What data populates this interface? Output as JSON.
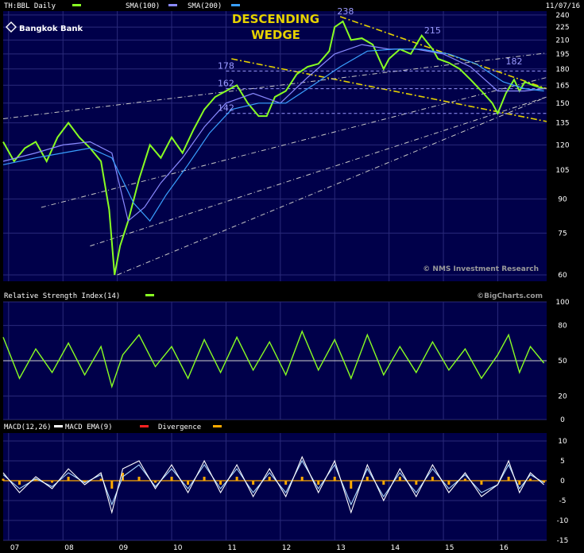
{
  "header": {
    "symbol": "TH:BBL Daily",
    "sma100": "SMA(100)",
    "sma200": "SMA(200)",
    "date": "11/07/16",
    "logo_text": "Bangkok Bank",
    "pattern_line1": "DESCENDING",
    "pattern_line2": "WEDGE",
    "copyright": "© NMS Investment Research",
    "bigcharts": "©BigCharts.com"
  },
  "colors": {
    "background": "#000000",
    "plot_bg": "#00004a",
    "grid": "#2a2a7a",
    "price": "#88ff22",
    "sma100": "#8a8aff",
    "sma200": "#3aa0ff",
    "trendline_yellow": "#e6d200",
    "trendline_white": "#c8c8c8",
    "macd": "#ffffff",
    "macd_ema": "#a8d8ff",
    "divergence": "#ffaa00",
    "divergence_neg": "#ff2222"
  },
  "chart_data": [
    {
      "type": "line",
      "title": "TH:BBL Daily",
      "series": [
        {
          "name": "TH:BBL Daily",
          "role": "price",
          "x": [
            2006.9,
            2007.1,
            2007.3,
            2007.5,
            2007.7,
            2007.9,
            2008.1,
            2008.3,
            2008.5,
            2008.7,
            2008.85,
            2008.95,
            2009.05,
            2009.2,
            2009.4,
            2009.6,
            2009.8,
            2010.0,
            2010.2,
            2010.4,
            2010.6,
            2010.8,
            2011.0,
            2011.2,
            2011.4,
            2011.6,
            2011.75,
            2011.9,
            2012.1,
            2012.3,
            2012.5,
            2012.7,
            2012.9,
            2013.0,
            2013.15,
            2013.3,
            2013.5,
            2013.7,
            2013.9,
            2014.0,
            2014.2,
            2014.4,
            2014.6,
            2014.8,
            2014.9,
            2015.1,
            2015.3,
            2015.5,
            2015.7,
            2015.9,
            2016.0,
            2016.15,
            2016.3,
            2016.4,
            2016.5,
            2016.65,
            2016.85
          ],
          "y": [
            122,
            110,
            118,
            122,
            110,
            125,
            135,
            125,
            118,
            110,
            85,
            60,
            70,
            80,
            100,
            120,
            112,
            125,
            115,
            130,
            145,
            155,
            160,
            165,
            150,
            140,
            140,
            155,
            160,
            175,
            182,
            185,
            198,
            225,
            232,
            210,
            212,
            205,
            180,
            190,
            200,
            195,
            215,
            200,
            190,
            186,
            180,
            170,
            160,
            150,
            142,
            158,
            170,
            160,
            168,
            165,
            162
          ]
        },
        {
          "name": "SMA(100)",
          "role": "sma",
          "x": [
            2006.9,
            2007.5,
            2008.0,
            2008.5,
            2008.9,
            2009.2,
            2009.5,
            2009.8,
            2010.2,
            2010.6,
            2011.0,
            2011.5,
            2012.0,
            2012.5,
            2013.0,
            2013.5,
            2014.0,
            2014.5,
            2015.0,
            2015.5,
            2016.0,
            2016.5,
            2016.85
          ],
          "y": [
            110,
            115,
            120,
            122,
            115,
            80,
            86,
            98,
            112,
            132,
            150,
            158,
            150,
            172,
            195,
            205,
            200,
            200,
            195,
            182,
            160,
            160,
            162
          ]
        },
        {
          "name": "SMA(200)",
          "role": "sma",
          "x": [
            2006.9,
            2007.5,
            2008.0,
            2008.5,
            2008.9,
            2009.3,
            2009.6,
            2009.9,
            2010.3,
            2010.7,
            2011.1,
            2011.6,
            2012.1,
            2012.6,
            2013.1,
            2013.6,
            2014.1,
            2014.6,
            2015.1,
            2015.6,
            2016.1,
            2016.5,
            2016.85
          ],
          "y": [
            108,
            112,
            115,
            118,
            112,
            88,
            80,
            92,
            108,
            128,
            145,
            150,
            150,
            165,
            182,
            198,
            200,
            200,
            195,
            185,
            168,
            162,
            160
          ]
        }
      ],
      "annotations": [
        {
          "text": "238",
          "x": 2013.2,
          "y": 238
        },
        {
          "text": "215",
          "x": 2014.8,
          "y": 215
        },
        {
          "text": "182",
          "x": 2016.3,
          "y": 182
        },
        {
          "text": "178",
          "x": 2011.0,
          "y": 178
        },
        {
          "text": "162",
          "x": 2011.0,
          "y": 162
        },
        {
          "text": "142",
          "x": 2011.0,
          "y": 142
        }
      ],
      "hlines": [
        178,
        162,
        142
      ],
      "trendlines": [
        {
          "style": "yellow-dash",
          "x": [
            2013.1,
            2016.9
          ],
          "y": [
            238,
            162
          ]
        },
        {
          "style": "yellow-dash",
          "x": [
            2011.1,
            2016.9
          ],
          "y": [
            190,
            136
          ]
        },
        {
          "style": "white-dashdot",
          "x": [
            2006.9,
            2016.9
          ],
          "y": [
            138,
            196
          ]
        },
        {
          "style": "white-dashdot",
          "x": [
            2007.6,
            2016.9
          ],
          "y": [
            86,
            172
          ]
        },
        {
          "style": "white-dashdot",
          "x": [
            2009.0,
            2016.9
          ],
          "y": [
            60,
            155
          ]
        },
        {
          "style": "white-dashdot",
          "x": [
            2008.5,
            2016.9
          ],
          "y": [
            70,
            155
          ]
        }
      ],
      "yaxis_ticks": [
        240,
        225,
        210,
        195,
        180,
        165,
        150,
        135,
        120,
        105,
        90,
        75,
        60
      ],
      "yscale": "log",
      "ylim": [
        58,
        245
      ],
      "xlim": [
        2006.9,
        2016.9
      ],
      "grid": true
    },
    {
      "type": "line",
      "title": "Relative Strength Index(14)",
      "series": [
        {
          "name": "Relative Strength Index(14)",
          "x": [
            2006.9,
            2007.2,
            2007.5,
            2007.8,
            2008.1,
            2008.4,
            2008.7,
            2008.9,
            2009.1,
            2009.4,
            2009.7,
            2010.0,
            2010.3,
            2010.6,
            2010.9,
            2011.2,
            2011.5,
            2011.8,
            2012.1,
            2012.4,
            2012.7,
            2013.0,
            2013.3,
            2013.6,
            2013.9,
            2014.2,
            2014.5,
            2014.8,
            2015.1,
            2015.4,
            2015.7,
            2016.0,
            2016.2,
            2016.4,
            2016.6,
            2016.85
          ],
          "y": [
            70,
            35,
            60,
            40,
            65,
            38,
            62,
            28,
            55,
            72,
            45,
            62,
            35,
            68,
            40,
            70,
            42,
            66,
            38,
            75,
            42,
            68,
            35,
            72,
            38,
            62,
            40,
            66,
            42,
            60,
            35,
            55,
            72,
            40,
            62,
            48
          ]
        }
      ],
      "yaxis_ticks": [
        100,
        80,
        50,
        20,
        0
      ],
      "hlines": [
        50
      ],
      "ylim": [
        0,
        100
      ]
    },
    {
      "type": "line",
      "title": "MACD(12,26)",
      "legend": [
        "MACD(12,26)",
        "MACD EMA(9)",
        "Divergence"
      ],
      "series": [
        {
          "name": "MACD(12,26)",
          "x": [
            2006.9,
            2007.2,
            2007.5,
            2007.8,
            2008.1,
            2008.4,
            2008.7,
            2008.9,
            2009.1,
            2009.4,
            2009.7,
            2010.0,
            2010.3,
            2010.6,
            2010.9,
            2011.2,
            2011.5,
            2011.8,
            2012.1,
            2012.4,
            2012.7,
            2013.0,
            2013.3,
            2013.6,
            2013.9,
            2014.2,
            2014.5,
            2014.8,
            2015.1,
            2015.4,
            2015.7,
            2016.0,
            2016.2,
            2016.4,
            2016.6,
            2016.85
          ],
          "y": [
            2,
            -3,
            1,
            -2,
            3,
            -1,
            2,
            -8,
            3,
            5,
            -2,
            4,
            -3,
            5,
            -3,
            4,
            -4,
            3,
            -4,
            6,
            -3,
            5,
            -8,
            4,
            -5,
            3,
            -4,
            4,
            -3,
            2,
            -4,
            -1,
            5,
            -3,
            2,
            -1
          ]
        },
        {
          "name": "MACD EMA(9)",
          "x": [
            2006.9,
            2007.2,
            2007.5,
            2007.8,
            2008.1,
            2008.4,
            2008.7,
            2008.9,
            2009.1,
            2009.4,
            2009.7,
            2010.0,
            2010.3,
            2010.6,
            2010.9,
            2011.2,
            2011.5,
            2011.8,
            2012.1,
            2012.4,
            2012.7,
            2013.0,
            2013.3,
            2013.6,
            2013.9,
            2014.2,
            2014.5,
            2014.8,
            2015.1,
            2015.4,
            2015.7,
            2016.0,
            2016.2,
            2016.4,
            2016.6,
            2016.85
          ],
          "y": [
            1.5,
            -2,
            0.5,
            -1.5,
            2,
            -0.5,
            1.5,
            -6,
            1,
            4,
            -1.5,
            3,
            -2,
            4,
            -2,
            3,
            -3,
            2,
            -3,
            5,
            -2,
            4,
            -6,
            3,
            -4,
            2,
            -3,
            3,
            -2,
            1.5,
            -3,
            -1,
            4,
            -2,
            1.5,
            -0.5
          ]
        },
        {
          "name": "Divergence",
          "x": [
            2006.9,
            2007.2,
            2007.5,
            2007.8,
            2008.1,
            2008.4,
            2008.7,
            2008.9,
            2009.1,
            2009.4,
            2009.7,
            2010.0,
            2010.3,
            2010.6,
            2010.9,
            2011.2,
            2011.5,
            2011.8,
            2012.1,
            2012.4,
            2012.7,
            2013.0,
            2013.3,
            2013.6,
            2013.9,
            2014.2,
            2014.5,
            2014.8,
            2015.1,
            2015.4,
            2015.7,
            2016.0,
            2016.2,
            2016.4,
            2016.6,
            2016.85
          ],
          "y": [
            0.5,
            -1,
            0.5,
            -0.5,
            1,
            -0.5,
            0.5,
            -2,
            2,
            1,
            -0.5,
            1,
            -1,
            1,
            -1,
            1,
            -1,
            1,
            -1,
            1,
            -1,
            1,
            -2,
            1,
            -1,
            1,
            -1,
            1,
            -1,
            0.5,
            -1,
            0,
            1,
            -1,
            0.5,
            -0.5
          ]
        }
      ],
      "yaxis_ticks": [
        10,
        5,
        0,
        -5,
        -10,
        -15
      ],
      "ylim": [
        -15,
        12
      ]
    }
  ],
  "xaxis_labels": [
    {
      "text": "07",
      "x": 2007.0
    },
    {
      "text": "08",
      "x": 2008.0
    },
    {
      "text": "09",
      "x": 2009.0
    },
    {
      "text": "10",
      "x": 2010.0
    },
    {
      "text": "11",
      "x": 2011.0
    },
    {
      "text": "12",
      "x": 2012.0
    },
    {
      "text": "13",
      "x": 2013.0
    },
    {
      "text": "14",
      "x": 2014.0
    },
    {
      "text": "15",
      "x": 2015.0
    },
    {
      "text": "16",
      "x": 2016.0
    }
  ]
}
